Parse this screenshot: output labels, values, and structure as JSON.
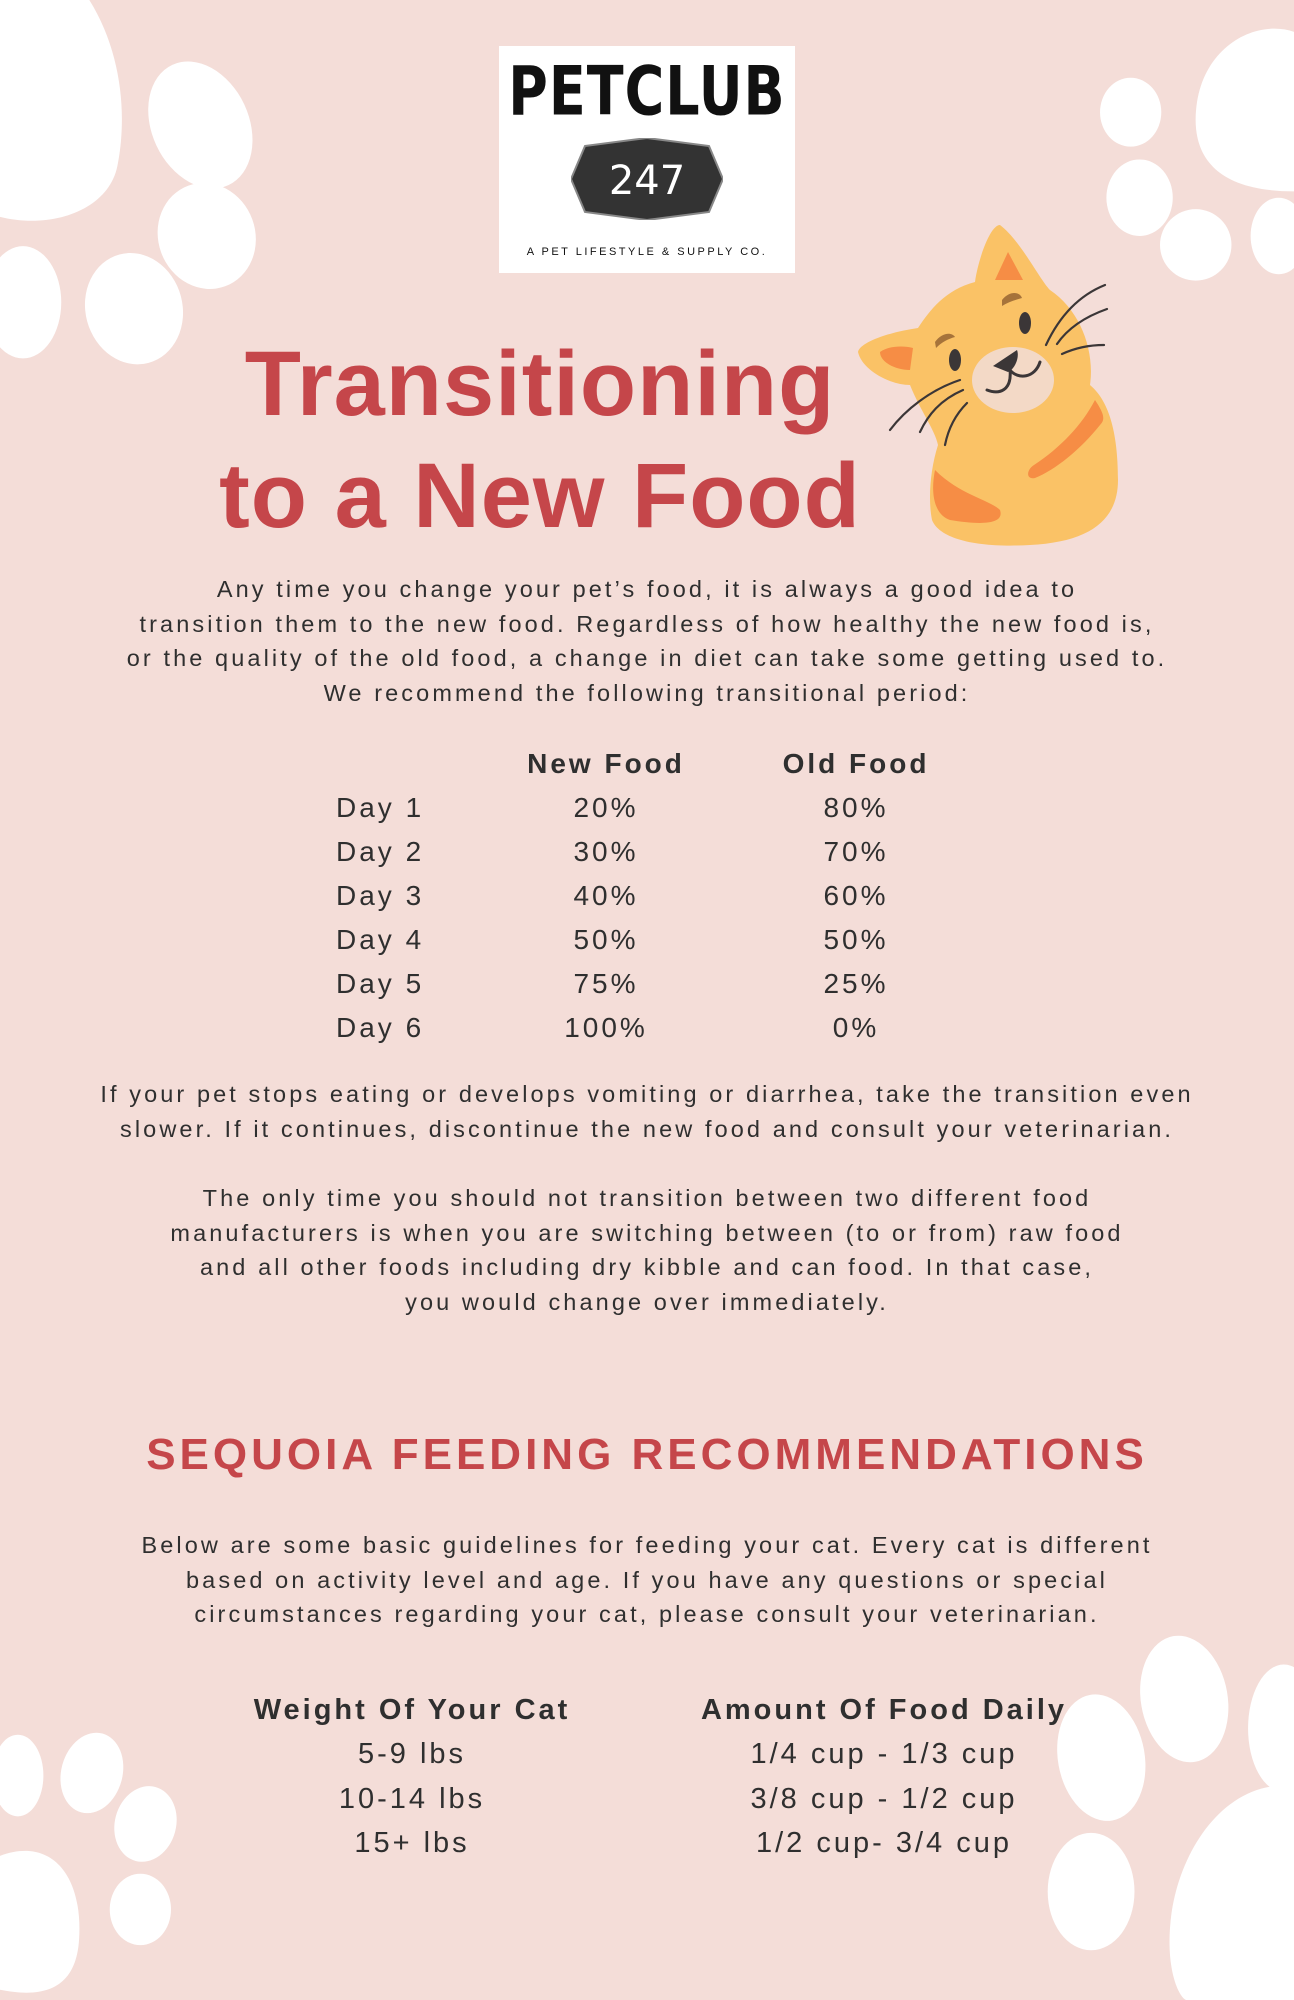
{
  "logo": {
    "brand": "PETCLUB",
    "number": "247",
    "tagline": "A PET LIFESTYLE & SUPPLY CO."
  },
  "title": {
    "line1": "Transitioning",
    "line2": "to a New Food"
  },
  "intro": [
    "Any time you change your pet’s food, it is always a good idea to",
    "transition them to the new food. Regardless of how healthy the new food is,",
    "or the quality of the old food, a change in diet can take some getting used to.",
    "We recommend the following transitional period:"
  ],
  "transition_table": {
    "headers": [
      "",
      "New Food",
      "Old Food"
    ],
    "rows": [
      [
        "Day 1",
        "20%",
        "80%"
      ],
      [
        "Day 2",
        "30%",
        "70%"
      ],
      [
        "Day 3",
        "40%",
        "60%"
      ],
      [
        "Day 4",
        "50%",
        "50%"
      ],
      [
        "Day 5",
        "75%",
        "25%"
      ],
      [
        "Day 6",
        "100%",
        "0%"
      ]
    ]
  },
  "warning": [
    "If your pet stops eating or develops vomiting or diarrhea, take the transition even",
    "slower. If it continues, discontinue the new food and consult your veterinarian."
  ],
  "raw_note": [
    "The only time you should not transition between two different food",
    "manufacturers is when you are switching between (to or from) raw food",
    "and all other foods including dry kibble and can food. In that case,",
    "you would change over immediately."
  ],
  "section_heading": "SEQUOIA FEEDING RECOMMENDATIONS",
  "feeding_intro": [
    "Below are some basic guidelines for feeding your cat. Every cat is different",
    "based on activity level and age. If you have any questions or special",
    "circumstances regarding your cat, please consult your veterinarian."
  ],
  "feeding_table": {
    "headers": [
      "Weight Of Your Cat",
      "Amount Of Food Daily"
    ],
    "rows": [
      [
        "5-9 lbs",
        "1/4 cup - 1/3 cup"
      ],
      [
        "10-14 lbs",
        "3/8 cup - 1/2 cup"
      ],
      [
        "15+ lbs",
        "1/2 cup- 3/4 cup"
      ]
    ]
  },
  "colors": {
    "background": "#f4ddd8",
    "accent": "#c5464a",
    "cat": "#fac266",
    "stripe": "#f68d45",
    "paw": "#ffffff"
  },
  "icons": [
    "paw-print-icon",
    "cat-illustration"
  ]
}
